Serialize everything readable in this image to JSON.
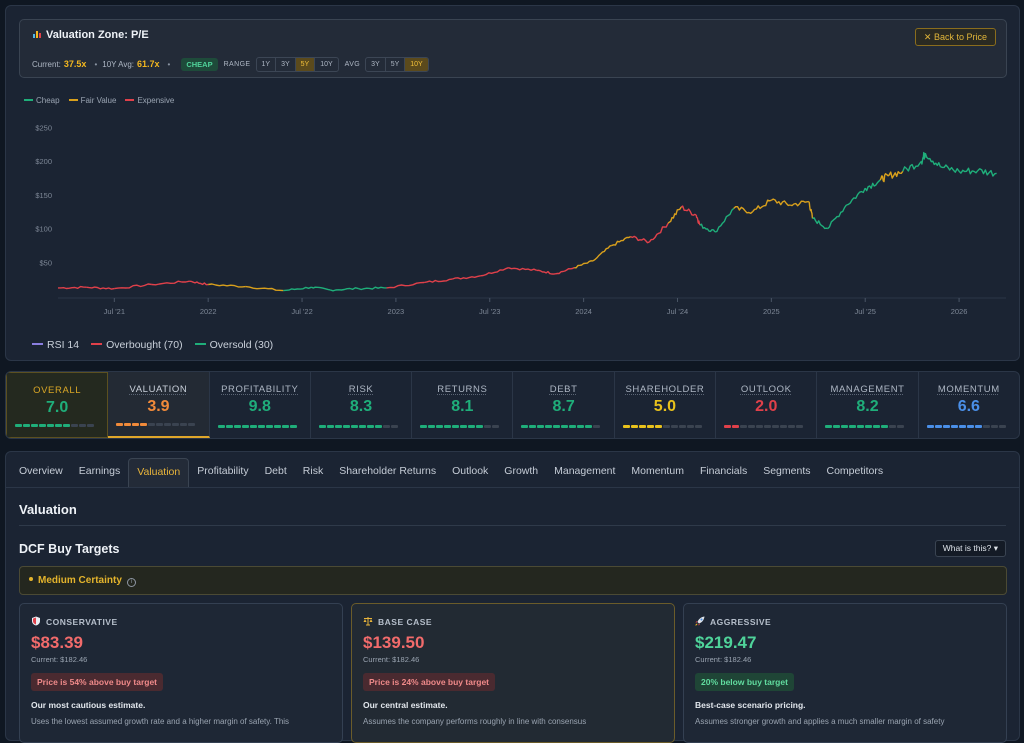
{
  "zone": {
    "title": "Valuation Zone: P/E",
    "back_label": "Back to Price",
    "current_label": "Current:",
    "current_value": "37.5x",
    "avg_label": "10Y Avg:",
    "avg_value": "61.7x",
    "badge": "CHEAP",
    "range_label": "RANGE",
    "range_options": [
      "1Y",
      "3Y",
      "5Y",
      "10Y"
    ],
    "range_selected": "5Y",
    "avg_select_label": "AVG",
    "avg_options": [
      "3Y",
      "5Y",
      "10Y"
    ],
    "avg_selected": "10Y"
  },
  "legend": {
    "cheap": "Cheap",
    "fair": "Fair Value",
    "expensive": "Expensive"
  },
  "colors": {
    "cheap": "#1fae7a",
    "fair": "#d9a01c",
    "expensive": "#e0404a",
    "accent": "#e9b53b"
  },
  "chart_data": {
    "type": "line",
    "y_ticks": [
      "$250",
      "$200",
      "$150",
      "$100",
      "$50"
    ],
    "y_tick_values": [
      250,
      200,
      150,
      100,
      50
    ],
    "ylim": [
      0,
      270
    ],
    "x_ticks": [
      "Jul '21",
      "2022",
      "Jul '22",
      "2023",
      "Jul '23",
      "2024",
      "Jul '24",
      "2025",
      "Jul '25",
      "2026"
    ],
    "x_tick_positions": [
      2021.5,
      2022,
      2022.5,
      2023,
      2023.5,
      2024,
      2024.5,
      2025,
      2025.5,
      2026
    ],
    "xlim": [
      2021.2,
      2026.25
    ],
    "series": [
      {
        "points": [
          [
            2021.2,
            12,
            "expensive"
          ],
          [
            2021.35,
            13,
            "expensive"
          ],
          [
            2021.5,
            11,
            "expensive"
          ],
          [
            2021.7,
            17,
            "expensive"
          ],
          [
            2021.9,
            22,
            "expensive"
          ],
          [
            2022.0,
            17,
            "fair"
          ],
          [
            2022.2,
            14,
            "fair"
          ],
          [
            2022.4,
            8,
            "cheap"
          ],
          [
            2022.55,
            13,
            "cheap"
          ],
          [
            2022.65,
            9,
            "cheap"
          ],
          [
            2022.8,
            11,
            "cheap"
          ],
          [
            2022.95,
            12,
            "expensive"
          ],
          [
            2023.15,
            20,
            "expensive"
          ],
          [
            2023.3,
            25,
            "expensive"
          ],
          [
            2023.45,
            30,
            "expensive"
          ],
          [
            2023.6,
            42,
            "expensive"
          ],
          [
            2023.75,
            38,
            "expensive"
          ],
          [
            2023.85,
            33,
            "expensive"
          ],
          [
            2023.95,
            42,
            "fair"
          ],
          [
            2024.05,
            52,
            "fair"
          ],
          [
            2024.15,
            75,
            "fair"
          ],
          [
            2024.25,
            88,
            "expensive"
          ],
          [
            2024.35,
            80,
            "expensive"
          ],
          [
            2024.45,
            108,
            "fair"
          ],
          [
            2024.52,
            132,
            "expensive"
          ],
          [
            2024.6,
            120,
            "expensive"
          ],
          [
            2024.62,
            105,
            "cheap"
          ],
          [
            2024.7,
            95,
            "cheap"
          ],
          [
            2024.8,
            130,
            "fair"
          ],
          [
            2024.9,
            125,
            "fair"
          ],
          [
            2025.0,
            142,
            "fair"
          ],
          [
            2025.1,
            135,
            "fair"
          ],
          [
            2025.2,
            140,
            "fair"
          ],
          [
            2025.22,
            115,
            "cheap"
          ],
          [
            2025.3,
            100,
            "cheap"
          ],
          [
            2025.4,
            135,
            "cheap"
          ],
          [
            2025.5,
            160,
            "cheap"
          ],
          [
            2025.58,
            172,
            "fair"
          ],
          [
            2025.62,
            178,
            "fair"
          ],
          [
            2025.7,
            185,
            "cheap"
          ],
          [
            2025.8,
            200,
            "cheap"
          ],
          [
            2025.82,
            212,
            "cheap"
          ],
          [
            2025.9,
            192,
            "cheap"
          ],
          [
            2026.0,
            185,
            "cheap"
          ],
          [
            2026.1,
            186,
            "cheap"
          ],
          [
            2026.2,
            182,
            "cheap"
          ]
        ]
      }
    ]
  },
  "rsi_legend": {
    "rsi": "RSI 14",
    "overbought": "Overbought (70)",
    "oversold": "Oversold (30)"
  },
  "scores": [
    {
      "name": "OVERALL",
      "value": "7.0",
      "color": "#1fae7a",
      "filled": 7
    },
    {
      "name": "VALUATION",
      "value": "3.9",
      "color": "#f08a3a",
      "filled": 4
    },
    {
      "name": "PROFITABILITY",
      "value": "9.8",
      "color": "#1fae7a",
      "filled": 10
    },
    {
      "name": "RISK",
      "value": "8.3",
      "color": "#1fae7a",
      "filled": 8
    },
    {
      "name": "RETURNS",
      "value": "8.1",
      "color": "#1fae7a",
      "filled": 8
    },
    {
      "name": "DEBT",
      "value": "8.7",
      "color": "#1fae7a",
      "filled": 9
    },
    {
      "name": "SHAREHOLDER",
      "value": "5.0",
      "color": "#e9c21c",
      "filled": 5
    },
    {
      "name": "OUTLOOK",
      "value": "2.0",
      "color": "#e0404a",
      "filled": 2
    },
    {
      "name": "MANAGEMENT",
      "value": "8.2",
      "color": "#1fae7a",
      "filled": 8
    },
    {
      "name": "MOMENTUM",
      "value": "6.6",
      "color": "#4a8fe8",
      "filled": 7
    }
  ],
  "tabs": [
    "Overview",
    "Earnings",
    "Valuation",
    "Profitability",
    "Debt",
    "Risk",
    "Shareholder Returns",
    "Outlook",
    "Growth",
    "Management",
    "Momentum",
    "Financials",
    "Segments",
    "Competitors"
  ],
  "active_tab": "Valuation",
  "section_title": "Valuation",
  "dcf_title": "DCF Buy Targets",
  "what_label": "What is this?",
  "certainty": "Medium Certainty",
  "cards": [
    {
      "heading": "CONSERVATIVE",
      "price": "$83.39",
      "price_color": "#f26b6b",
      "current": "Current: $182.46",
      "tag": "Price is 54% above buy target",
      "desc_h": "Our most cautious estimate.",
      "desc": "Uses the lowest assumed growth rate and a higher margin of safety. This"
    },
    {
      "heading": "BASE CASE",
      "price": "$139.50",
      "price_color": "#f26b6b",
      "current": "Current: $182.46",
      "tag": "Price is 24% above buy target",
      "desc_h": "Our central estimate.",
      "desc": "Assumes the company performs roughly in line with consensus"
    },
    {
      "heading": "AGGRESSIVE",
      "price": "$219.47",
      "price_color": "#4fd39a",
      "current": "Current: $182.46",
      "tag": "20% below buy target",
      "desc_h": "Best-case scenario pricing.",
      "desc": "Assumes stronger growth and applies a much smaller margin of safety"
    }
  ]
}
